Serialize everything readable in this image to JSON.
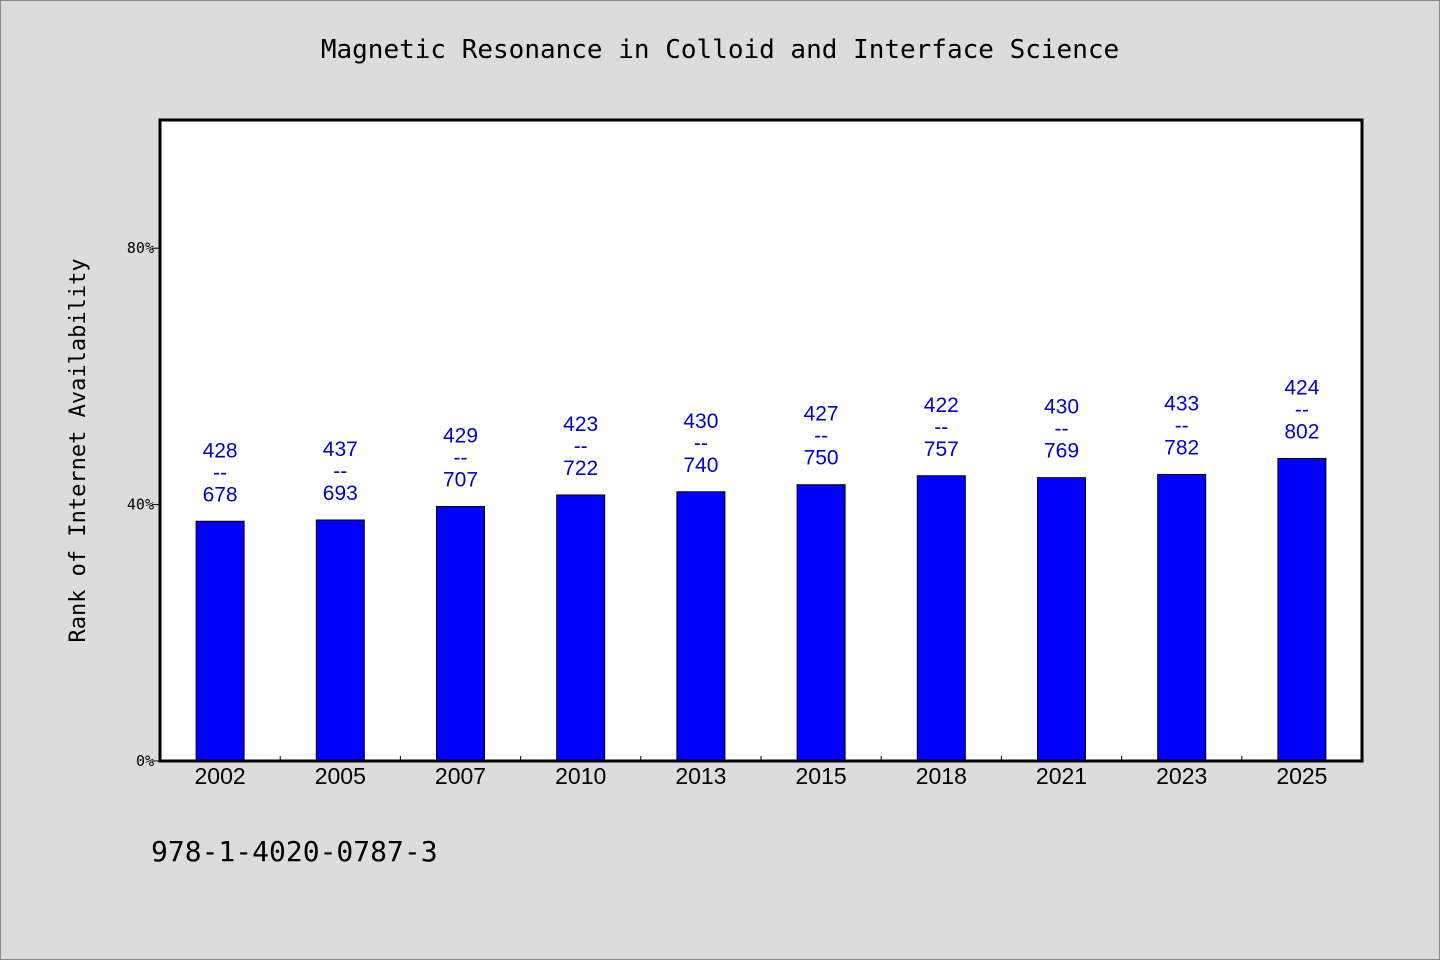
{
  "title": "Magnetic Resonance in Colloid and Interface Science",
  "footer": "978-1-4020-0787-3",
  "colors": {
    "bar": "#0000ff",
    "label": "#0000cc",
    "background": "#dcdcdc",
    "plot": "#ffffff"
  },
  "chart_data": {
    "type": "bar",
    "title": "Magnetic Resonance in Colloid and Interface Science",
    "ylabel": "Rank of Internet Availability",
    "xlabel": "",
    "ylim": [
      0,
      100
    ],
    "yticks": [
      0,
      40,
      80
    ],
    "ytick_labels": [
      "0%",
      "40%",
      "80%"
    ],
    "grid": false,
    "categories": [
      "2002",
      "2005",
      "2007",
      "2010",
      "2013",
      "2015",
      "2018",
      "2021",
      "2023",
      "2025"
    ],
    "values": [
      37.4,
      37.6,
      39.7,
      41.5,
      42.0,
      43.1,
      44.5,
      44.2,
      44.7,
      47.2
    ],
    "labels": [
      [
        "428",
        "--",
        "678"
      ],
      [
        "437",
        "--",
        "693"
      ],
      [
        "429",
        "--",
        "707"
      ],
      [
        "423",
        "--",
        "722"
      ],
      [
        "430",
        "--",
        "740"
      ],
      [
        "427",
        "--",
        "750"
      ],
      [
        "422",
        "--",
        "757"
      ],
      [
        "430",
        "--",
        "769"
      ],
      [
        "433",
        "--",
        "782"
      ],
      [
        "424",
        "--",
        "802"
      ]
    ]
  }
}
